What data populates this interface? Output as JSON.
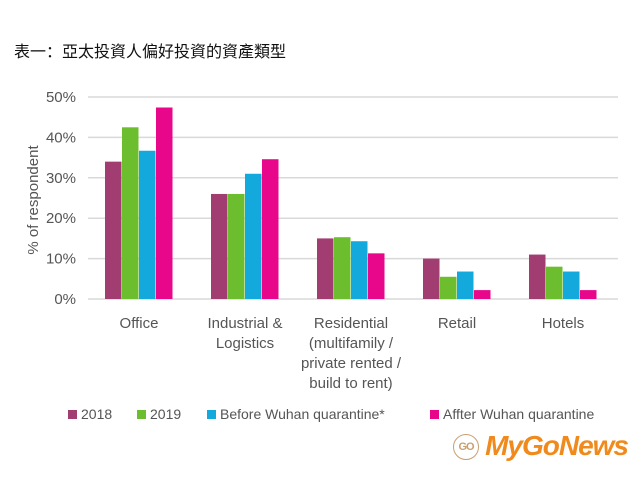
{
  "title": "表一：亞太投資人偏好投資的資產類型",
  "chart_data": {
    "type": "bar",
    "title": "表一：亞太投資人偏好投資的資產類型",
    "xlabel": "",
    "ylabel": "% of respondent",
    "ylim": [
      0,
      50
    ],
    "yticks": [
      "0%",
      "10%",
      "20%",
      "30%",
      "40%",
      "50%"
    ],
    "grid": true,
    "legend_position": "bottom",
    "categories": [
      [
        "Office"
      ],
      [
        "Industrial &",
        "Logistics"
      ],
      [
        "Residential",
        "(multifamily /",
        "private rented /",
        "build to rent)"
      ],
      [
        "Retail"
      ],
      [
        "Hotels"
      ]
    ],
    "series": [
      {
        "name": "2018",
        "color": "#A23D72",
        "values": [
          34,
          26,
          15,
          10,
          11
        ]
      },
      {
        "name": "2019",
        "color": "#6DBE2E",
        "values": [
          42.5,
          26,
          15.3,
          5.5,
          8
        ]
      },
      {
        "name": "Before Wuhan quarantine*",
        "color": "#14A9DD",
        "values": [
          36.7,
          31,
          14.3,
          6.8,
          6.8
        ]
      },
      {
        "name": "Affter Wuhan quarantine",
        "color": "#E8068B",
        "values": [
          47.4,
          34.6,
          11.3,
          2.2,
          2.2
        ]
      }
    ]
  },
  "logo": {
    "text": "MyGoNews",
    "mark": "GO"
  }
}
